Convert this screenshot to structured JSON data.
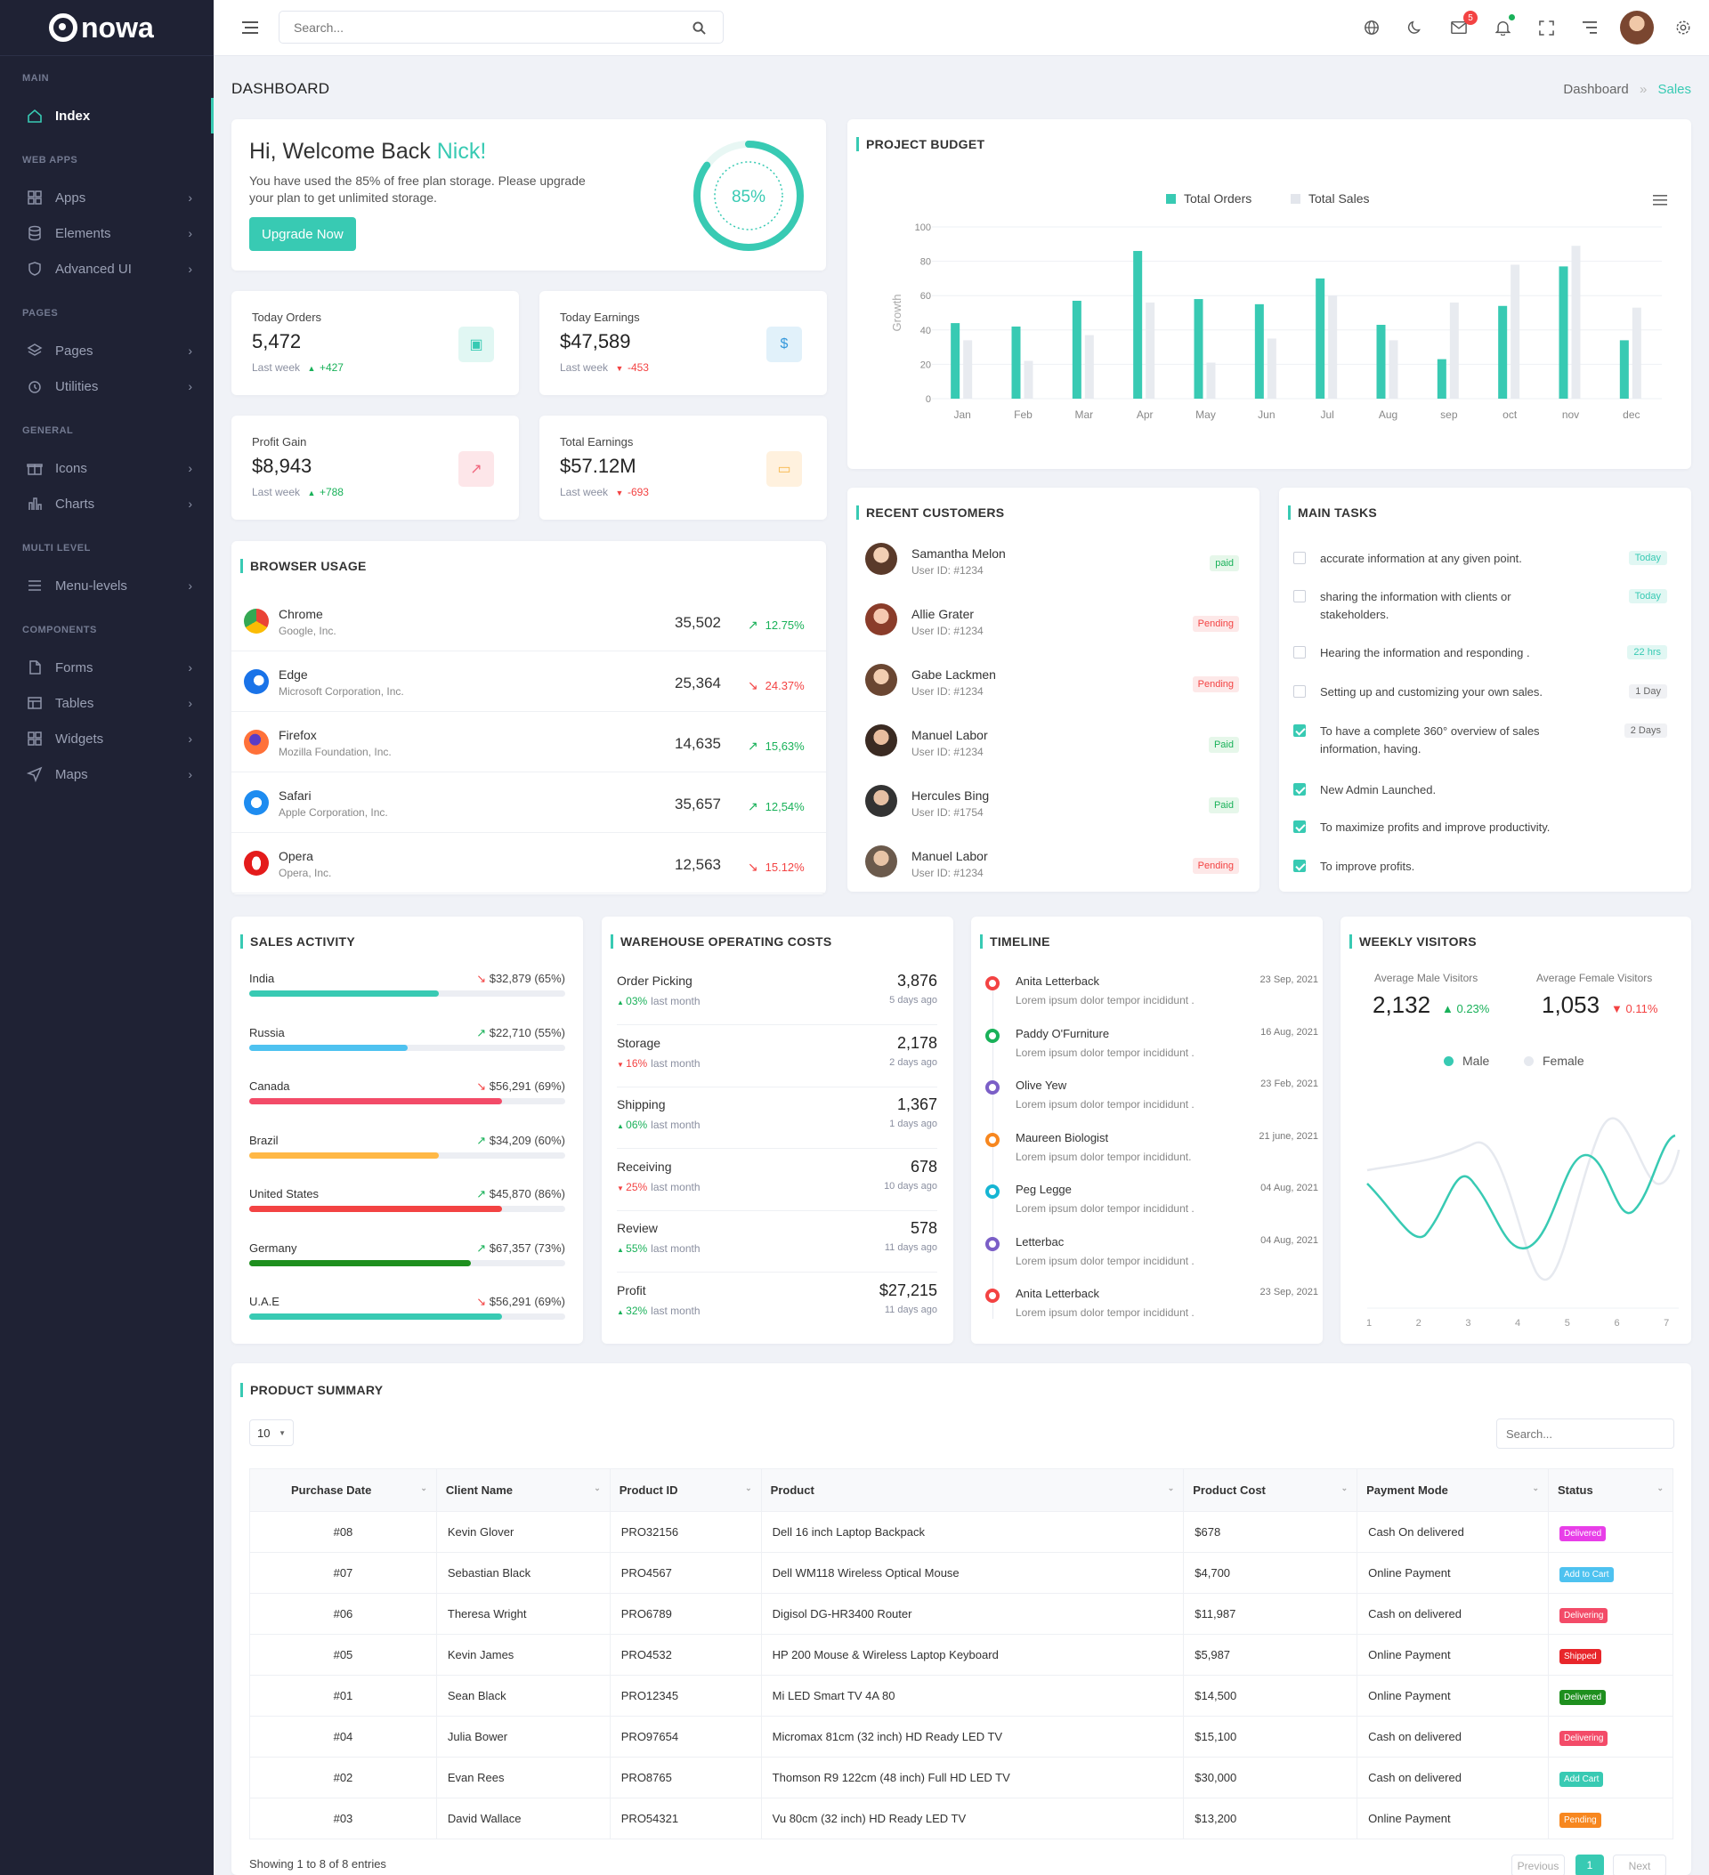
{
  "app": {
    "logo_text": "nowa"
  },
  "sidebar": {
    "sections": [
      {
        "title": "MAIN",
        "items": [
          {
            "label": "Index",
            "icon": "home-icon",
            "active": true,
            "chevron": false
          }
        ]
      },
      {
        "title": "WEB APPS",
        "items": [
          {
            "label": "Apps",
            "icon": "grid-icon",
            "chevron": true
          },
          {
            "label": "Elements",
            "icon": "database-icon",
            "chevron": true
          },
          {
            "label": "Advanced UI",
            "icon": "shield-icon",
            "chevron": true
          }
        ]
      },
      {
        "title": "PAGES",
        "items": [
          {
            "label": "Pages",
            "icon": "layers-icon",
            "chevron": true
          },
          {
            "label": "Utilities",
            "icon": "clock-icon",
            "chevron": true
          }
        ]
      },
      {
        "title": "GENERAL",
        "items": [
          {
            "label": "Icons",
            "icon": "gift-icon",
            "chevron": true
          },
          {
            "label": "Charts",
            "icon": "bar-chart-icon",
            "chevron": true
          }
        ]
      },
      {
        "title": "MULTI LEVEL",
        "items": [
          {
            "label": "Menu-levels",
            "icon": "menu-icon",
            "chevron": true
          }
        ]
      },
      {
        "title": "COMPONENTS",
        "items": [
          {
            "label": "Forms",
            "icon": "file-icon",
            "chevron": true
          },
          {
            "label": "Tables",
            "icon": "table-icon",
            "chevron": true
          },
          {
            "label": "Widgets",
            "icon": "widget-icon",
            "chevron": true
          },
          {
            "label": "Maps",
            "icon": "map-icon",
            "chevron": true
          }
        ]
      }
    ]
  },
  "header": {
    "search_placeholder": "Search...",
    "mail_badge": "5"
  },
  "page": {
    "title": "DASHBOARD",
    "breadcrumb": [
      "Dashboard",
      "Sales"
    ]
  },
  "welcome": {
    "greeting": "Hi, Welcome Back ",
    "name": "Nick!",
    "text": "You have used the 85% of free plan storage. Please upgrade your plan to get unlimited storage.",
    "button": "Upgrade Now",
    "progress_label": "85%",
    "progress": 85
  },
  "stats": [
    {
      "label": "Today Orders",
      "value": "5,472",
      "period": "Last week",
      "change": "+427",
      "trend": "up",
      "icon": "clipboard-icon",
      "icon_bg": "#e1f7f3",
      "icon_color": "#38cab3"
    },
    {
      "label": "Today Earnings",
      "value": "$47,589",
      "period": "Last week",
      "change": "-453",
      "trend": "down",
      "icon": "dollar-icon",
      "icon_bg": "#e1f1fa",
      "icon_color": "#3498db"
    },
    {
      "label": "Profit Gain",
      "value": "$8,943",
      "period": "Last week",
      "change": "+788",
      "trend": "up",
      "icon": "external-link-icon",
      "icon_bg": "#fde6e9",
      "icon_color": "#f1667d"
    },
    {
      "label": "Total Earnings",
      "value": "$57.12M",
      "period": "Last week",
      "change": "-693",
      "trend": "down",
      "icon": "credit-card-icon",
      "icon_bg": "#fff1de",
      "icon_color": "#f7b84b"
    }
  ],
  "browser_usage": {
    "title": "BROWSER USAGE",
    "rows": [
      {
        "name": "Chrome",
        "company": "Google, Inc.",
        "value": "35,502",
        "pct": "12.75%",
        "trend": "up",
        "icon": "chrome-icon"
      },
      {
        "name": "Edge",
        "company": "Microsoft Corporation, Inc.",
        "value": "25,364",
        "pct": "24.37%",
        "trend": "down",
        "icon": "edge-icon"
      },
      {
        "name": "Firefox",
        "company": "Mozilla Foundation, Inc.",
        "value": "14,635",
        "pct": "15,63%",
        "trend": "up",
        "icon": "firefox-icon"
      },
      {
        "name": "Safari",
        "company": "Apple Corporation, Inc.",
        "value": "35,657",
        "pct": "12,54%",
        "trend": "up",
        "icon": "safari-icon"
      },
      {
        "name": "Opera",
        "company": "Opera, Inc.",
        "value": "12,563",
        "pct": "15.12%",
        "trend": "down",
        "icon": "opera-icon"
      }
    ]
  },
  "chart_data": {
    "type": "bar",
    "title": "PROJECT BUDGET",
    "categories": [
      "Jan",
      "Feb",
      "Mar",
      "Apr",
      "May",
      "Jun",
      "Jul",
      "Aug",
      "sep",
      "oct",
      "nov",
      "dec"
    ],
    "series": [
      {
        "name": "Total Orders",
        "color": "#38cab3",
        "values": [
          44,
          42,
          57,
          86,
          58,
          55,
          70,
          43,
          23,
          54,
          77,
          34
        ]
      },
      {
        "name": "Total Sales",
        "color": "#e8ebf0",
        "values": [
          34,
          22,
          37,
          56,
          21,
          35,
          60,
          34,
          56,
          78,
          89,
          53
        ]
      }
    ],
    "ylabel": "Growth",
    "ylim": [
      0,
      100
    ],
    "yticks": [
      0,
      20,
      40,
      60,
      80,
      100
    ],
    "legend": "top-center",
    "grid": true
  },
  "recent_customers": {
    "title": "RECENT CUSTOMERS",
    "rows": [
      {
        "name": "Samantha Melon",
        "id": "User ID: #1234",
        "status": "paid",
        "type": "success"
      },
      {
        "name": "Allie Grater",
        "id": "User ID: #1234",
        "status": "Pending",
        "type": "danger"
      },
      {
        "name": "Gabe Lackmen",
        "id": "User ID: #1234",
        "status": "Pending",
        "type": "danger"
      },
      {
        "name": "Manuel Labor",
        "id": "User ID: #1234",
        "status": "Paid",
        "type": "success"
      },
      {
        "name": "Hercules Bing",
        "id": "User ID: #1754",
        "status": "Paid",
        "type": "success"
      },
      {
        "name": "Manuel Labor",
        "id": "User ID: #1234",
        "status": "Pending",
        "type": "danger"
      }
    ]
  },
  "main_tasks": {
    "title": "MAIN TASKS",
    "rows": [
      {
        "text": "accurate information at any given point.",
        "badge": "Today",
        "checked": false,
        "badge_type": "teal"
      },
      {
        "text": "sharing the information with clients or stakeholders.",
        "badge": "Today",
        "checked": false,
        "badge_type": "teal"
      },
      {
        "text": "Hearing the information and responding .",
        "badge": "22 hrs",
        "checked": false,
        "badge_type": "teal"
      },
      {
        "text": "Setting up and customizing your own sales.",
        "badge": "1 Day",
        "checked": false,
        "badge_type": "gray"
      },
      {
        "text": "To have a complete 360° overview of sales information, having.",
        "badge": "2 Days",
        "checked": true,
        "badge_type": "gray"
      },
      {
        "text": "New Admin Launched.",
        "badge": "",
        "checked": true
      },
      {
        "text": "To maximize profits and improve productivity.",
        "badge": "",
        "checked": true
      },
      {
        "text": "To improve profits.",
        "badge": "",
        "checked": true
      }
    ]
  },
  "sales_activity": {
    "title": "SALES ACTIVITY",
    "rows": [
      {
        "country": "India",
        "value": "$32,879 (65%)",
        "pct": 60,
        "color": "#38cab3",
        "trend": "down"
      },
      {
        "country": "Russia",
        "value": "$22,710 (55%)",
        "pct": 50,
        "color": "#4ec2f0",
        "trend": "up"
      },
      {
        "country": "Canada",
        "value": "$56,291 (69%)",
        "pct": 80,
        "color": "#f34b68",
        "trend": "down"
      },
      {
        "country": "Brazil",
        "value": "$34,209 (60%)",
        "pct": 60,
        "color": "#ffb846",
        "trend": "up"
      },
      {
        "country": "United States",
        "value": "$45,870 (86%)",
        "pct": 80,
        "color": "#f34343",
        "trend": "up"
      },
      {
        "country": "Germany",
        "value": "$67,357 (73%)",
        "pct": 70,
        "color": "#1e8f1e",
        "trend": "up"
      },
      {
        "country": "U.A.E",
        "value": "$56,291 (69%)",
        "pct": 80,
        "color": "#38cab3",
        "trend": "down"
      }
    ]
  },
  "warehouse": {
    "title": "WAREHOUSE OPERATING COSTS",
    "rows": [
      {
        "name": "Order Picking",
        "value": "3,876",
        "change": "03%",
        "suffix": "last month",
        "ago": "5 days ago",
        "trend": "up"
      },
      {
        "name": "Storage",
        "value": "2,178",
        "change": "16%",
        "suffix": "last month",
        "ago": "2 days ago",
        "trend": "down"
      },
      {
        "name": "Shipping",
        "value": "1,367",
        "change": "06%",
        "suffix": "last month",
        "ago": "1 days ago",
        "trend": "up"
      },
      {
        "name": "Receiving",
        "value": "678",
        "change": "25%",
        "suffix": "last month",
        "ago": "10 days ago",
        "trend": "down"
      },
      {
        "name": "Review",
        "value": "578",
        "change": "55%",
        "suffix": "last month",
        "ago": "11 days ago",
        "trend": "up"
      },
      {
        "name": "Profit",
        "value": "$27,215",
        "change": "32%",
        "suffix": "last month",
        "ago": "11 days ago",
        "trend": "up"
      }
    ]
  },
  "timeline": {
    "title": "TIMELINE",
    "rows": [
      {
        "name": "Anita Letterback",
        "date": "23 Sep, 2021",
        "desc": "Lorem ipsum dolor tempor incididunt .",
        "color": "#f34343"
      },
      {
        "name": "Paddy O'Furniture",
        "date": "16 Aug, 2021",
        "desc": "Lorem ipsum dolor tempor incididunt .",
        "color": "#19b159"
      },
      {
        "name": "Olive Yew",
        "date": "23 Feb, 2021",
        "desc": "Lorem ipsum dolor tempor incididunt .",
        "color": "#7b5fc7"
      },
      {
        "name": "Maureen Biologist",
        "date": "21 june, 2021",
        "desc": "Lorem ipsum dolor tempor incididunt.",
        "color": "#f7871f"
      },
      {
        "name": "Peg Legge",
        "date": "04 Aug, 2021",
        "desc": "Lorem ipsum dolor tempor incididunt .",
        "color": "#16b5d3"
      },
      {
        "name": "Letterbac",
        "date": "04 Aug, 2021",
        "desc": "Lorem ipsum dolor tempor incididunt .",
        "color": "#7b5fc7"
      },
      {
        "name": "Anita Letterback",
        "date": "23 Sep, 2021",
        "desc": "Lorem ipsum dolor tempor incididunt .",
        "color": "#f34343"
      }
    ]
  },
  "weekly_visitors": {
    "title": "WEEKLY VISITORS",
    "male_label": "Average Male Visitors",
    "male_value": "2,132",
    "male_change": "0.23%",
    "female_label": "Average Female Visitors",
    "female_value": "1,053",
    "female_change": "0.11%",
    "legend": [
      "Male",
      "Female"
    ],
    "x": [
      "1",
      "2",
      "3",
      "4",
      "5",
      "6",
      "7"
    ]
  },
  "product_summary": {
    "title": "PRODUCT SUMMARY",
    "page_size": "10",
    "search_placeholder": "Search...",
    "columns": [
      "Purchase Date",
      "Client Name",
      "Product ID",
      "Product",
      "Product Cost",
      "Payment Mode",
      "Status"
    ],
    "rows": [
      {
        "date": "#08",
        "client": "Kevin Glover",
        "pid": "PRO32156",
        "product": "Dell 16 inch Laptop Backpack",
        "cost": "$678",
        "payment": "Cash On delivered",
        "status": "Delivered",
        "color": "#e83ee8"
      },
      {
        "date": "#07",
        "client": "Sebastian Black",
        "pid": "PRO4567",
        "product": "Dell WM118 Wireless Optical Mouse",
        "cost": "$4,700",
        "payment": "Online Payment",
        "status": "Add to Cart",
        "color": "#4ec2f0"
      },
      {
        "date": "#06",
        "client": "Theresa Wright",
        "pid": "PRO6789",
        "product": "Digisol DG-HR3400 Router",
        "cost": "$11,987",
        "payment": "Cash on delivered",
        "status": "Delivering",
        "color": "#f34b68"
      },
      {
        "date": "#05",
        "client": "Kevin James",
        "pid": "PRO4532",
        "product": "HP 200 Mouse & Wireless Laptop Keyboard",
        "cost": "$5,987",
        "payment": "Online Payment",
        "status": "Shipped",
        "color": "#e8262b"
      },
      {
        "date": "#01",
        "client": "Sean Black",
        "pid": "PRO12345",
        "product": "Mi LED Smart TV 4A 80",
        "cost": "$14,500",
        "payment": "Online Payment",
        "status": "Delivered",
        "color": "#1e8f1e"
      },
      {
        "date": "#04",
        "client": "Julia Bower",
        "pid": "PRO97654",
        "product": "Micromax 81cm (32 inch) HD Ready LED TV",
        "cost": "$15,100",
        "payment": "Cash on delivered",
        "status": "Delivering",
        "color": "#f34b68"
      },
      {
        "date": "#02",
        "client": "Evan Rees",
        "pid": "PRO8765",
        "product": "Thomson R9 122cm (48 inch) Full HD LED TV",
        "cost": "$30,000",
        "payment": "Cash on delivered",
        "status": "Add Cart",
        "color": "#38cab3"
      },
      {
        "date": "#03",
        "client": "David Wallace",
        "pid": "PRO54321",
        "product": "Vu 80cm (32 inch) HD Ready LED TV",
        "cost": "$13,200",
        "payment": "Online Payment",
        "status": "Pending",
        "color": "#f7871f"
      }
    ],
    "footer": "Showing 1 to 8 of 8 entries",
    "pagination": [
      "Previous",
      "1",
      "Next"
    ]
  },
  "colors": {
    "accent": "#38cab3",
    "sidebar_bg": "#1f2234",
    "danger": "#f34343",
    "success": "#19b159"
  }
}
